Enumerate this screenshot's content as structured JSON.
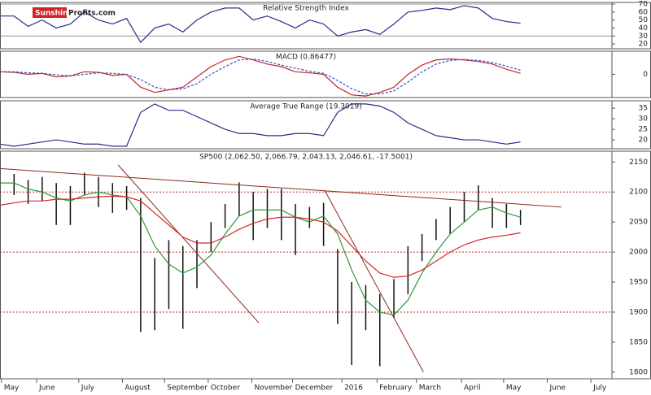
{
  "logo": {
    "brand": "Sunshine",
    "site": "Profits.com"
  },
  "chart_data": [
    {
      "type": "line",
      "title": "Relative Strength Index",
      "x": [
        0,
        10,
        20,
        30,
        40,
        50,
        60,
        70,
        80,
        90,
        100,
        110,
        120,
        130,
        140,
        150,
        160,
        170,
        180,
        190,
        200,
        210,
        220,
        230,
        240,
        250,
        260,
        270,
        280,
        290,
        300,
        310,
        320,
        330,
        340,
        350,
        360,
        370
      ],
      "xlim": [
        0,
        435
      ],
      "ylim": [
        14,
        72
      ],
      "yticks": [
        70,
        60,
        50,
        40,
        30,
        20
      ],
      "hlines": [
        70,
        30
      ],
      "series": [
        {
          "name": "RSI",
          "color": "#2b2b8c",
          "values": [
            55,
            55,
            42,
            50,
            40,
            45,
            60,
            50,
            45,
            52,
            22,
            40,
            45,
            35,
            50,
            60,
            65,
            65,
            50,
            55,
            48,
            40,
            50,
            45,
            30,
            35,
            38,
            32,
            45,
            60,
            62,
            65,
            63,
            68,
            65,
            52,
            48,
            46
          ]
        }
      ]
    },
    {
      "type": "line",
      "title": "MACD (0.86477)",
      "x": [
        0,
        10,
        20,
        30,
        40,
        50,
        60,
        70,
        80,
        90,
        100,
        110,
        120,
        130,
        140,
        150,
        160,
        170,
        180,
        190,
        200,
        210,
        220,
        230,
        240,
        250,
        260,
        270,
        280,
        290,
        300,
        310,
        320,
        330,
        340,
        350,
        360,
        370
      ],
      "xlim": [
        0,
        435
      ],
      "ylim": [
        -45,
        45
      ],
      "yticks": [
        0
      ],
      "series": [
        {
          "name": "MACD",
          "color": "#c0282d",
          "values": [
            5,
            4,
            0,
            2,
            -5,
            -3,
            5,
            4,
            -2,
            0,
            -25,
            -35,
            -30,
            -25,
            -5,
            15,
            28,
            35,
            28,
            20,
            15,
            5,
            3,
            0,
            -25,
            -40,
            -42,
            -35,
            -25,
            0,
            18,
            28,
            30,
            28,
            25,
            20,
            10,
            2
          ]
        },
        {
          "name": "Signal",
          "color": "#3050c8",
          "dashed": true,
          "values": [
            5,
            5,
            3,
            2,
            -1,
            -3,
            0,
            3,
            2,
            0,
            -10,
            -25,
            -30,
            -28,
            -18,
            0,
            15,
            28,
            30,
            25,
            18,
            12,
            6,
            2,
            -12,
            -28,
            -38,
            -38,
            -32,
            -15,
            5,
            20,
            27,
            29,
            27,
            23,
            16,
            8
          ]
        }
      ]
    },
    {
      "type": "line",
      "title": "Average True Range (19.3019)",
      "x": [
        0,
        10,
        20,
        30,
        40,
        50,
        60,
        70,
        80,
        90,
        100,
        110,
        120,
        130,
        140,
        150,
        160,
        170,
        180,
        190,
        200,
        210,
        220,
        230,
        240,
        250,
        260,
        270,
        280,
        290,
        300,
        310,
        320,
        330,
        340,
        350,
        360,
        370
      ],
      "xlim": [
        0,
        435
      ],
      "ylim": [
        15.8,
        38.5
      ],
      "yticks": [
        35,
        30,
        25,
        20
      ],
      "series": [
        {
          "name": "ATR",
          "color": "#2b2b8c",
          "values": [
            18,
            17,
            18,
            19,
            20,
            19,
            18,
            18,
            17,
            17,
            33,
            37,
            34,
            34,
            31,
            28,
            25,
            23,
            23,
            22,
            22,
            23,
            23,
            22,
            33,
            37,
            37,
            36,
            33,
            28,
            25,
            22,
            21,
            20,
            20,
            19,
            18,
            19
          ]
        }
      ]
    },
    {
      "type": "ohlc",
      "title": "SP500 (2,062.50, 2,066.79, 2,043.13, 2,046.61, -17.5001)",
      "x": [
        0,
        10,
        20,
        30,
        40,
        50,
        60,
        70,
        80,
        90,
        100,
        110,
        120,
        130,
        140,
        150,
        160,
        170,
        180,
        190,
        200,
        210,
        220,
        230,
        240,
        250,
        260,
        270,
        280,
        290,
        300,
        310,
        320,
        330,
        340,
        350,
        360,
        370
      ],
      "high": [
        2135,
        2130,
        2120,
        2125,
        2115,
        2110,
        2132,
        2125,
        2115,
        2110,
        2090,
        1990,
        2020,
        2010,
        2020,
        2050,
        2080,
        2116,
        2100,
        2105,
        2105,
        2080,
        2075,
        2082,
        2005,
        1950,
        1945,
        1930,
        1955,
        2010,
        2030,
        2055,
        2075,
        2100,
        2111,
        2090,
        2080,
        2070
      ],
      "low": [
        2110,
        2095,
        2080,
        2085,
        2045,
        2045,
        2095,
        2075,
        2065,
        2070,
        1867,
        1870,
        1905,
        1872,
        1940,
        2000,
        2040,
        2060,
        2020,
        2040,
        2020,
        1995,
        2040,
        2010,
        1880,
        1812,
        1870,
        1810,
        1890,
        1930,
        1985,
        2020,
        2030,
        2050,
        2070,
        2040,
        2040,
        2045
      ],
      "bar_color": "#111111",
      "xlim": [
        0,
        435
      ],
      "ylim": [
        1789,
        2168
      ],
      "yticks": [
        2150,
        2100,
        2050,
        2000,
        1950,
        1900,
        1850,
        1800
      ],
      "hlines": [
        2100,
        2000,
        1900
      ],
      "hline_color": "#c0282d",
      "xticks": [
        {
          "value": 1,
          "label": "May"
        },
        {
          "value": 26,
          "label": "June"
        },
        {
          "value": 56,
          "label": "July"
        },
        {
          "value": 87,
          "label": "August"
        },
        {
          "value": 117,
          "label": "September"
        },
        {
          "value": 148,
          "label": "October"
        },
        {
          "value": 179,
          "label": "November"
        },
        {
          "value": 208,
          "label": "December"
        },
        {
          "value": 243,
          "label": "2016"
        },
        {
          "value": 268,
          "label": "February"
        },
        {
          "value": 296,
          "label": "March"
        },
        {
          "value": 328,
          "label": "April"
        },
        {
          "value": 358,
          "label": "May"
        },
        {
          "value": 389,
          "label": "June"
        },
        {
          "value": 420,
          "label": "July"
        }
      ],
      "series": [
        {
          "name": "SMA short",
          "color": "#2e9a3a",
          "values": [
            2115,
            2115,
            2105,
            2100,
            2090,
            2085,
            2095,
            2100,
            2095,
            2092,
            2060,
            2010,
            1980,
            1965,
            1975,
            1995,
            2030,
            2060,
            2070,
            2070,
            2070,
            2058,
            2050,
            2060,
            2030,
            1970,
            1920,
            1900,
            1895,
            1920,
            1965,
            2000,
            2030,
            2050,
            2070,
            2075,
            2065,
            2058
          ]
        },
        {
          "name": "SMA long",
          "color": "#d8242a",
          "values": [
            2078,
            2082,
            2085,
            2085,
            2088,
            2088,
            2090,
            2092,
            2093,
            2092,
            2085,
            2065,
            2045,
            2025,
            2015,
            2015,
            2025,
            2038,
            2048,
            2055,
            2058,
            2058,
            2055,
            2050,
            2035,
            2010,
            1985,
            1965,
            1958,
            1960,
            1970,
            1985,
            2000,
            2012,
            2020,
            2025,
            2028,
            2032
          ]
        }
      ],
      "trendlines": [
        {
          "x": [
            0,
            399
          ],
          "y": [
            2139,
            2075
          ],
          "color": "#8b2a1a"
        },
        {
          "x": [
            84,
            184
          ],
          "y": [
            2145,
            1882
          ],
          "color": "#8b2a1a"
        },
        {
          "x": [
            231,
            301
          ],
          "y": [
            2102,
            1800
          ],
          "color": "#8b2a1a"
        }
      ]
    }
  ]
}
